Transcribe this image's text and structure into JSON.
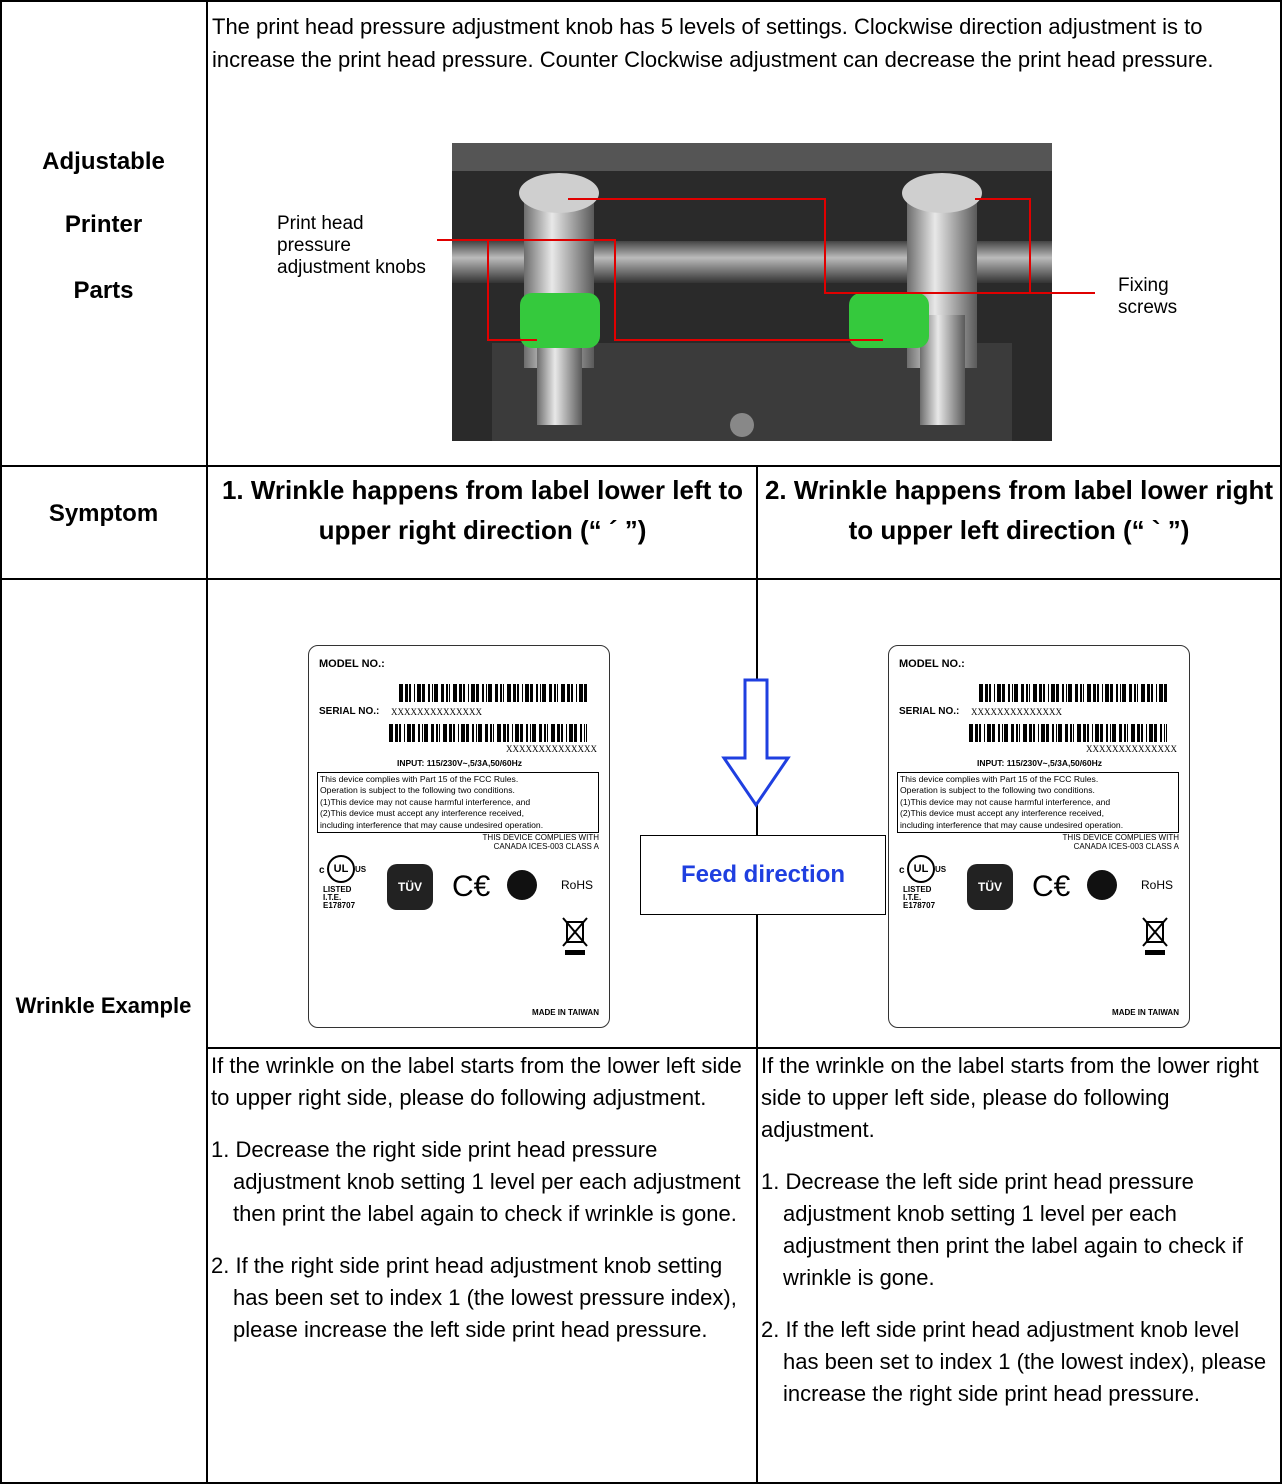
{
  "adjustable_parts": {
    "label": [
      "Adjustable",
      "Printer",
      "Parts"
    ],
    "description": "The print head pressure adjustment knob has 5 levels of settings. Clockwise direction adjustment is to increase the print head pressure. Counter Clockwise adjustment can decrease the print head pressure.",
    "callout_knobs": "Print head pressure adjustment knobs",
    "callout_screws": "Fixing screws"
  },
  "symptom": {
    "label": "Symptom",
    "items": [
      "1. Wrinkle happens from label lower left to upper right direction (“ ´ ”)",
      "2. Wrinkle happens from label lower right to upper left direction (“ ` ”)"
    ]
  },
  "wrinkle_example": {
    "label": "Wrinkle Example",
    "feed_direction": "Feed direction",
    "label_sample": {
      "model": "MODEL NO.:",
      "serial": "SERIAL NO.:",
      "serial_value": "XXXXXXXXXXXXXX",
      "barcode_text": "XXXXXXXXXXXXXX",
      "input": "INPUT: 115/230V~,5/3A,50/60Hz",
      "fcc": [
        "This device complies with Part 15 of the FCC Rules.",
        "Operation is subject to the following two conditions.",
        "(1)This device may not cause harmful interference, and",
        "(2)This device must accept any interference received,",
        "including interference that may cause undesired operation."
      ],
      "canada": [
        "THIS DEVICE COMPLIES WITH",
        "CANADA ICES-003 CLASS A"
      ],
      "ul": "UL",
      "ul_c": "c",
      "ul_us": "US",
      "listed": [
        "LISTED",
        "I.T.E.",
        "E178707"
      ],
      "tuv": "TÜV",
      "rohs": "RoHS",
      "made_in": "MADE IN TAIWAN"
    },
    "instructions": [
      {
        "intro": "If the wrinkle on the label starts from the lower left side to upper right side, please do following adjustment.",
        "steps": [
          "1. Decrease the right side print head pressure adjustment knob setting 1 level per each adjustment then print the label again to check if wrinkle is gone.",
          "2. If the right side print head adjustment knob setting has been set to index 1 (the lowest pressure index), please increase the left side print head pressure."
        ]
      },
      {
        "intro": "If the wrinkle on the label starts from the lower right side to upper left side, please do following adjustment.",
        "steps": [
          "1. Decrease the left side print head pressure adjustment knob setting 1 level per each adjustment then print the label again to check if wrinkle is gone.",
          "2. If the left side print head adjustment knob level has been set to index 1 (the lowest index), please increase the right side print head pressure."
        ]
      }
    ]
  }
}
